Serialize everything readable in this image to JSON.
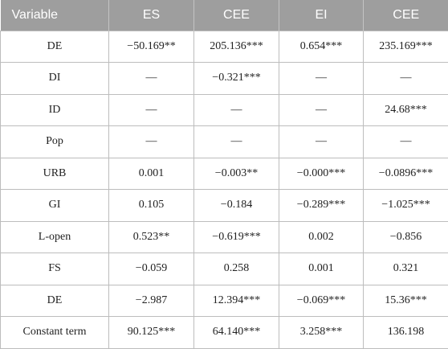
{
  "table": {
    "header": [
      "Variable",
      "ES",
      "CEE",
      "EI",
      "CEE"
    ],
    "rows": [
      [
        "DE",
        "−50.169**",
        "205.136***",
        "0.654***",
        "235.169***"
      ],
      [
        "DI",
        "—",
        "−0.321***",
        "—",
        "—"
      ],
      [
        "ID",
        "—",
        "—",
        "—",
        "24.68***"
      ],
      [
        "Pop",
        "—",
        "—",
        "—",
        "—"
      ],
      [
        "URB",
        "0.001",
        "−0.003**",
        "−0.000***",
        "−0.0896***"
      ],
      [
        "GI",
        "0.105",
        "−0.184",
        "−0.289***",
        "−1.025***"
      ],
      [
        "L-open",
        "0.523**",
        "−0.619***",
        "0.002",
        "−0.856"
      ],
      [
        "FS",
        "−0.059",
        "0.258",
        "0.001",
        "0.321"
      ],
      [
        "DE",
        "−2.987",
        "12.394***",
        "−0.069***",
        "15.36***"
      ],
      [
        "Constant term",
        "90.125***",
        "64.140***",
        "3.258***",
        "136.198"
      ]
    ]
  }
}
